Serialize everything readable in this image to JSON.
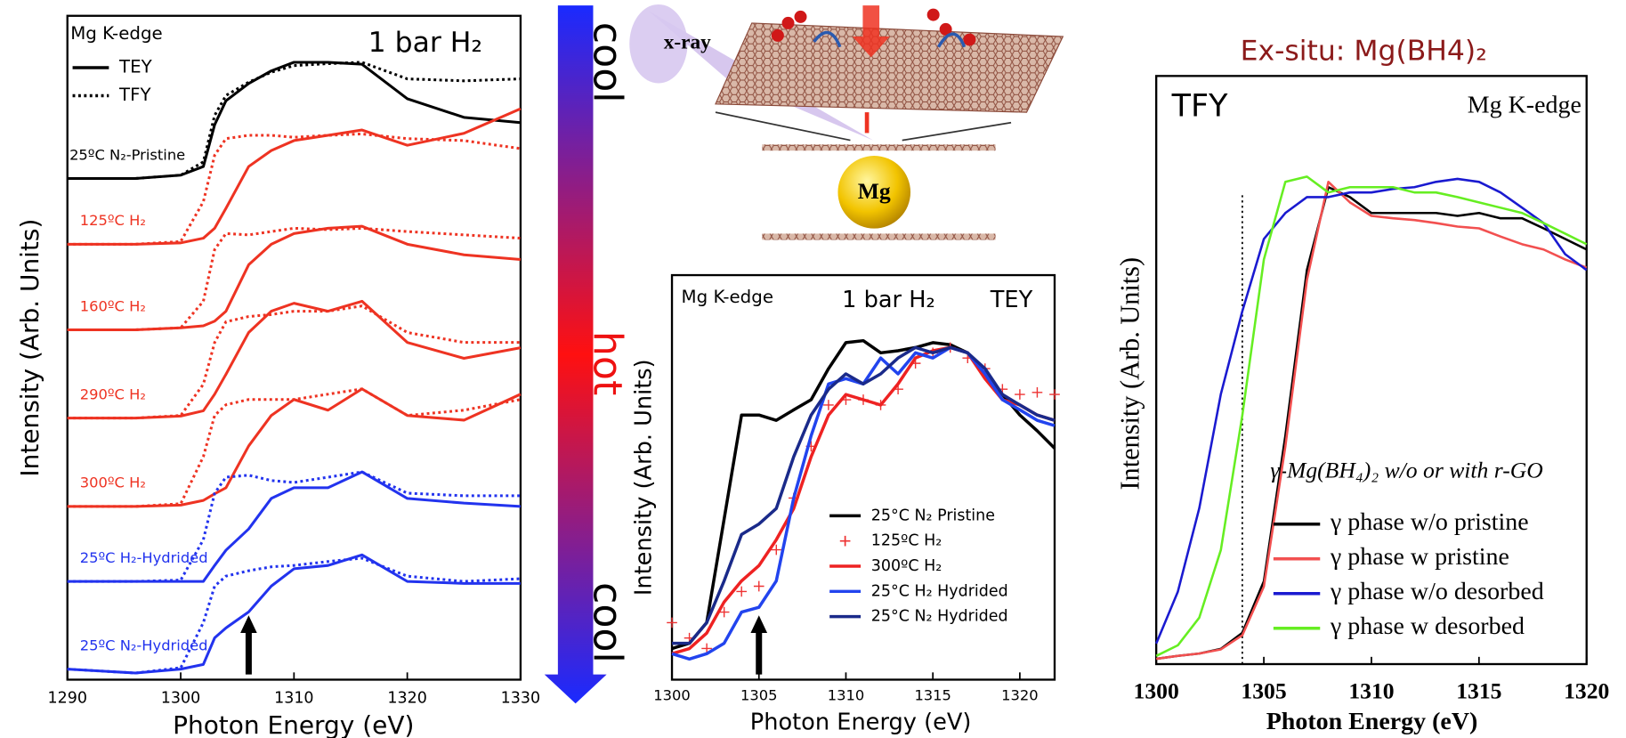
{
  "chart_data": [
    {
      "type": "line",
      "x_label": "Photon Energy (eV)",
      "y_label": "Intensity (Arb. Units)",
      "panel_label": "Mg K-edge",
      "condition": "1 bar H₂",
      "x": [
        1290,
        1296,
        1300,
        1302,
        1303,
        1304,
        1306,
        1308,
        1310,
        1313,
        1316,
        1320,
        1325,
        1330
      ],
      "xlim": [
        1290,
        1330
      ],
      "xticks": [
        1290,
        1300,
        1310,
        1320,
        1330
      ],
      "ylim": [
        0,
        10
      ],
      "legend": [
        {
          "name": "TEY",
          "dash": "solid"
        },
        {
          "name": "TFY",
          "dash": "dotted"
        }
      ],
      "arrow_x": 1306,
      "series": [
        {
          "name": "25ºC N₂-Pristine",
          "color": "#000000",
          "values": [
            7.55,
            7.55,
            7.6,
            7.73,
            8.36,
            8.72,
            8.98,
            9.17,
            9.3,
            9.3,
            9.27,
            8.75,
            8.47,
            8.39
          ],
          "tfy_values": [
            7.55,
            7.55,
            7.6,
            7.8,
            8.5,
            8.8,
            9.0,
            9.15,
            9.25,
            9.28,
            9.3,
            9.05,
            9.02,
            9.05
          ]
        },
        {
          "name": "125ºC H₂",
          "color": "#ee3322",
          "values": [
            6.56,
            6.56,
            6.58,
            6.65,
            6.8,
            7.1,
            7.73,
            7.97,
            8.12,
            8.2,
            8.28,
            8.05,
            8.23,
            8.6
          ],
          "tfy_values": [
            6.56,
            6.56,
            6.6,
            7.2,
            7.9,
            8.15,
            8.2,
            8.2,
            8.17,
            8.2,
            8.22,
            8.15,
            8.12,
            8.0
          ]
        },
        {
          "name": "160ºC H₂",
          "color": "#ee3322",
          "values": [
            5.27,
            5.27,
            5.3,
            5.33,
            5.4,
            5.55,
            6.25,
            6.56,
            6.72,
            6.8,
            6.83,
            6.56,
            6.4,
            6.33
          ],
          "tfy_values": [
            5.27,
            5.27,
            5.3,
            5.7,
            6.48,
            6.72,
            6.7,
            6.75,
            6.8,
            6.78,
            6.8,
            6.75,
            6.7,
            6.65
          ]
        },
        {
          "name": "290ºC H₂",
          "color": "#ee3322",
          "values": [
            3.94,
            3.94,
            3.97,
            4.05,
            4.3,
            4.6,
            5.23,
            5.55,
            5.67,
            5.55,
            5.7,
            5.08,
            4.84,
            5.0
          ],
          "tfy_values": [
            3.94,
            3.94,
            3.98,
            4.45,
            5.08,
            5.39,
            5.47,
            5.5,
            5.55,
            5.55,
            5.63,
            5.23,
            5.08,
            5.08
          ]
        },
        {
          "name": "300ºC H₂",
          "color": "#ee3322",
          "values": [
            2.61,
            2.61,
            2.63,
            2.7,
            2.8,
            2.89,
            3.52,
            3.98,
            4.22,
            4.06,
            4.38,
            3.98,
            3.91,
            4.3
          ],
          "tfy_values": [
            2.61,
            2.61,
            2.65,
            3.36,
            3.98,
            4.14,
            4.22,
            4.22,
            4.22,
            4.3,
            4.38,
            3.98,
            4.06,
            4.22
          ]
        },
        {
          "name": "25ºC H₂-Hydrided",
          "color": "#2233ee",
          "values": [
            1.48,
            1.48,
            1.48,
            1.48,
            1.72,
            1.95,
            2.27,
            2.73,
            2.89,
            2.89,
            3.13,
            2.73,
            2.66,
            2.61
          ],
          "tfy_values": [
            1.48,
            1.48,
            1.5,
            2.11,
            2.81,
            3.05,
            3.08,
            3.0,
            2.97,
            3.05,
            3.13,
            2.81,
            2.77,
            2.77
          ]
        },
        {
          "name": "25ºC N₂-Hydrided",
          "color": "#2233ee",
          "values": [
            0.16,
            0.1,
            0.16,
            0.23,
            0.63,
            0.78,
            1.02,
            1.41,
            1.67,
            1.72,
            1.88,
            1.48,
            1.45,
            1.45
          ],
          "tfy_values": [
            0.16,
            0.1,
            0.18,
            0.86,
            1.41,
            1.56,
            1.64,
            1.7,
            1.72,
            1.78,
            1.83,
            1.56,
            1.48,
            1.52
          ]
        }
      ]
    },
    {
      "type": "line",
      "x_label": "Photon Energy (eV)",
      "y_label": "Intensity (Arb. Units)",
      "panel_label": "Mg K-edge",
      "condition": "1 bar H₂",
      "mode": "TEY",
      "x": [
        1300,
        1301,
        1302,
        1303,
        1304,
        1305,
        1306,
        1307,
        1308,
        1309,
        1310,
        1311,
        1312,
        1313,
        1314,
        1315,
        1316,
        1317,
        1318,
        1319,
        1320,
        1321,
        1322
      ],
      "xlim": [
        1300,
        1322
      ],
      "xticks": [
        1300,
        1305,
        1310,
        1315,
        1320
      ],
      "ylim": [
        0,
        10
      ],
      "arrow_x": 1305,
      "series": [
        {
          "name": "25°C N₂ Pristine",
          "color": "#000000",
          "values": [
            0.77,
            0.9,
            1.41,
            3.97,
            6.54,
            6.54,
            6.41,
            6.67,
            6.92,
            7.69,
            8.33,
            8.38,
            8.08,
            8.13,
            8.21,
            8.33,
            8.28,
            8.08,
            7.56,
            7.05,
            6.54,
            6.15,
            5.72
          ]
        },
        {
          "name": "125ºC H₂",
          "color": "#ee3333",
          "style": "markers",
          "values": [
            1.41,
            1.03,
            0.77,
            1.67,
            2.18,
            2.31,
            3.21,
            4.49,
            5.77,
            6.79,
            6.92,
            6.92,
            6.79,
            7.18,
            7.82,
            8.08,
            8.21,
            7.95,
            7.69,
            7.18,
            7.05,
            7.1,
            7.05
          ]
        },
        {
          "name": "300ºC H₂",
          "color": "#ee2222",
          "values": [
            0.64,
            0.77,
            1.15,
            1.92,
            2.44,
            2.82,
            3.46,
            4.23,
            5.51,
            6.54,
            7.05,
            6.92,
            6.79,
            7.31,
            7.95,
            8.13,
            8.21,
            8.08,
            7.44,
            6.92,
            6.79,
            6.54,
            6.41
          ]
        },
        {
          "name": "25°C H₂ Hydrided",
          "color": "#2244ee",
          "values": [
            0.64,
            0.51,
            0.64,
            0.9,
            1.67,
            1.79,
            2.44,
            4.49,
            6.03,
            7.31,
            7.44,
            7.31,
            7.95,
            7.56,
            8.08,
            7.95,
            8.21,
            8.08,
            7.56,
            6.92,
            6.67,
            6.41,
            6.28
          ]
        },
        {
          "name": "25°C N₂ Hydrided",
          "color": "#1a2a8a",
          "values": [
            0.9,
            0.9,
            1.41,
            2.44,
            3.59,
            3.85,
            4.23,
            5.51,
            6.54,
            7.18,
            7.56,
            7.31,
            7.56,
            7.95,
            8.21,
            8.08,
            8.21,
            8.08,
            7.69,
            7.05,
            6.79,
            6.54,
            6.41
          ]
        }
      ]
    },
    {
      "type": "line",
      "title": "Ex-situ: Mg(BH4)₂",
      "x_label": "Photon Energy (eV)",
      "y_label": "Intensity (Arb. Units)",
      "mode": "TFY",
      "panel_label": "Mg K-edge",
      "annotation": "γ-Mg(BH₄)₂ w/o or with r-GO",
      "x": [
        1300,
        1301,
        1302,
        1303,
        1304,
        1305,
        1306,
        1307,
        1308,
        1309,
        1310,
        1311,
        1312,
        1313,
        1314,
        1315,
        1316,
        1317,
        1318,
        1319,
        1320
      ],
      "xlim": [
        1300,
        1320
      ],
      "xticks": [
        1300,
        1305,
        1310,
        1315,
        1320
      ],
      "ylim": [
        0,
        10
      ],
      "vline": 1304,
      "series": [
        {
          "name": "γ phase w/o pristine",
          "color": "#000000",
          "values": [
            0.09,
            0.14,
            0.18,
            0.26,
            0.53,
            1.41,
            3.88,
            6.7,
            8.11,
            7.94,
            7.67,
            7.67,
            7.67,
            7.67,
            7.62,
            7.67,
            7.58,
            7.58,
            7.41,
            7.23,
            7.05
          ]
        },
        {
          "name": "γ  phase w pristine",
          "color": "#f25050",
          "values": [
            0.09,
            0.14,
            0.18,
            0.25,
            0.49,
            1.32,
            3.7,
            6.53,
            8.2,
            7.85,
            7.62,
            7.58,
            7.55,
            7.5,
            7.44,
            7.41,
            7.27,
            7.14,
            7.05,
            6.88,
            6.74
          ]
        },
        {
          "name": "γ phase w/o desorbed",
          "color": "#1a1ad0",
          "values": [
            0.35,
            1.23,
            2.65,
            4.59,
            6.0,
            7.23,
            7.67,
            7.94,
            7.94,
            8.02,
            8.02,
            8.08,
            8.11,
            8.2,
            8.25,
            8.2,
            8.02,
            7.76,
            7.5,
            6.97,
            6.7
          ]
        },
        {
          "name": "γ phase w desorbed",
          "color": "#66ee22",
          "values": [
            0.14,
            0.32,
            0.79,
            1.94,
            4.23,
            6.88,
            8.2,
            8.29,
            8.02,
            8.11,
            8.11,
            8.11,
            8.02,
            8.02,
            7.94,
            7.85,
            7.76,
            7.67,
            7.5,
            7.32,
            7.14
          ]
        }
      ]
    }
  ],
  "figure": {
    "gradient_labels": [
      "cool",
      "hot",
      "cool"
    ],
    "diagram": {
      "beam_label": "x-ray",
      "particle_label": "Mg"
    }
  }
}
